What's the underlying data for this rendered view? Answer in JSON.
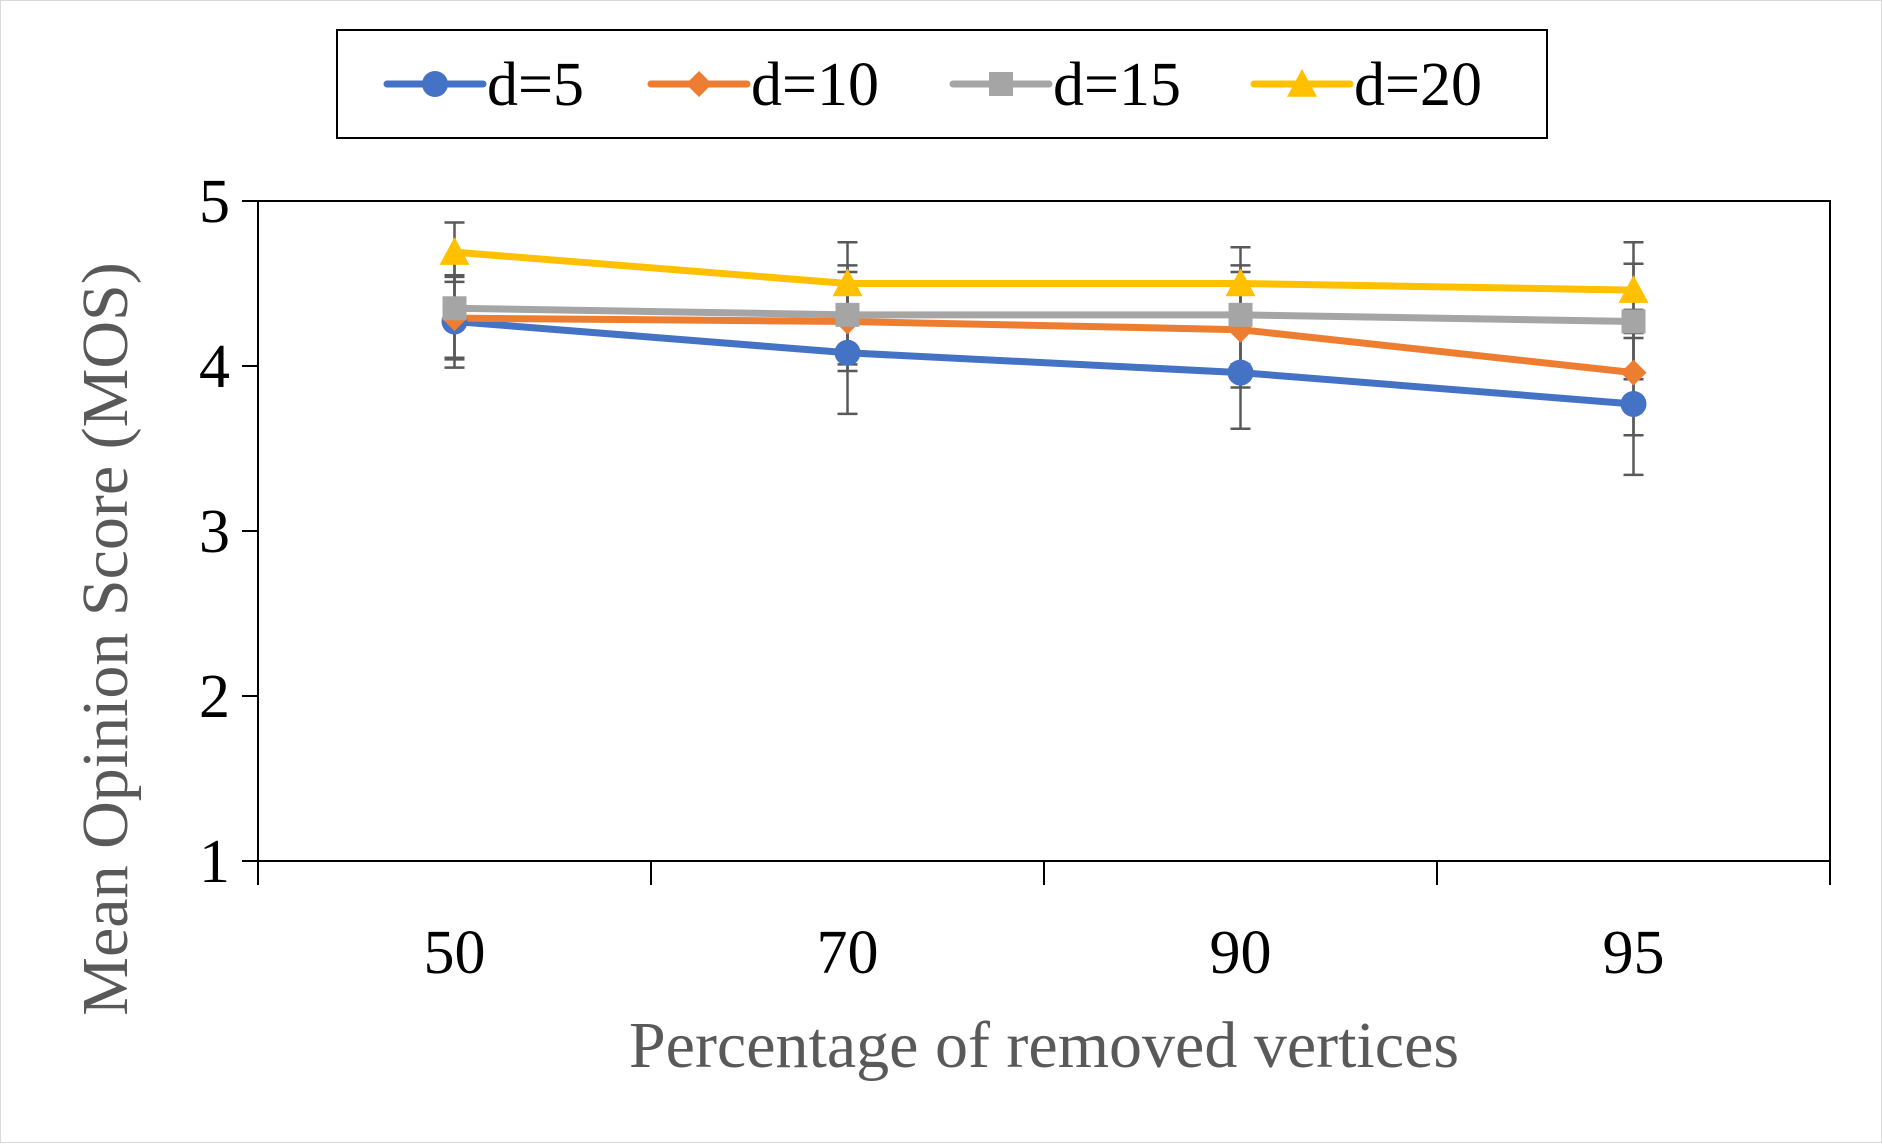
{
  "chart_data": {
    "type": "line",
    "title": "",
    "xlabel": "Percentage of removed vertices",
    "ylabel": "Mean Opinion Score (MOS)",
    "categories": [
      "50",
      "70",
      "90",
      "95"
    ],
    "ylim": [
      1,
      5
    ],
    "yticks": [
      "1",
      "2",
      "3",
      "4",
      "5"
    ],
    "grid": false,
    "legend_position": "top-center",
    "series": [
      {
        "name": "d=5",
        "color": "#4472C4",
        "marker": "circle",
        "values": [
          4.27,
          4.08,
          3.96,
          3.77
        ],
        "error": [
          0.28,
          0.37,
          0.34,
          0.43
        ]
      },
      {
        "name": "d=10",
        "color": "#ED7D31",
        "marker": "diamond",
        "values": [
          4.29,
          4.27,
          4.22,
          3.96
        ],
        "error": [
          0.25,
          0.3,
          0.35,
          0.38
        ]
      },
      {
        "name": "d=15",
        "color": "#A5A5A5",
        "marker": "square",
        "values": [
          4.35,
          4.31,
          4.31,
          4.27
        ],
        "error": [
          0.3,
          0.3,
          0.3,
          0.35
        ]
      },
      {
        "name": "d=20",
        "color": "#FFC000",
        "marker": "triangle",
        "values": [
          4.69,
          4.5,
          4.5,
          4.46
        ],
        "error": [
          0.18,
          0.25,
          0.22,
          0.29
        ]
      }
    ]
  }
}
